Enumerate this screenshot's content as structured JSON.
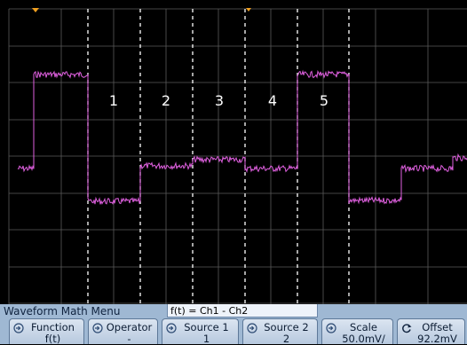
{
  "segment_labels": [
    "1",
    "2",
    "3",
    "4",
    "5"
  ],
  "menu": {
    "title": "Waveform Math Menu",
    "formula": "f(t) = Ch1 - Ch2"
  },
  "softkeys": [
    {
      "label": "Function",
      "value": "f(t)",
      "icon": "rotary-knob-icon"
    },
    {
      "label": "Operator",
      "value": "-",
      "icon": "rotary-knob-icon"
    },
    {
      "label": "Source 1",
      "value": "1",
      "icon": "rotary-knob-icon"
    },
    {
      "label": "Source 2",
      "value": "2",
      "icon": "rotary-knob-icon"
    },
    {
      "label": "Scale",
      "value": "50.0mV/",
      "icon": "rotary-knob-icon"
    },
    {
      "label": "Offset",
      "value": "92.2mV",
      "icon": "rotate-arrow-icon"
    }
  ],
  "colors": {
    "trace": "#e060e0",
    "grid": "#5a5a5a",
    "cursor_line": "#ffffff",
    "trigger_marker": "#f0a020",
    "menu_bg": "#9fb8d3"
  }
}
